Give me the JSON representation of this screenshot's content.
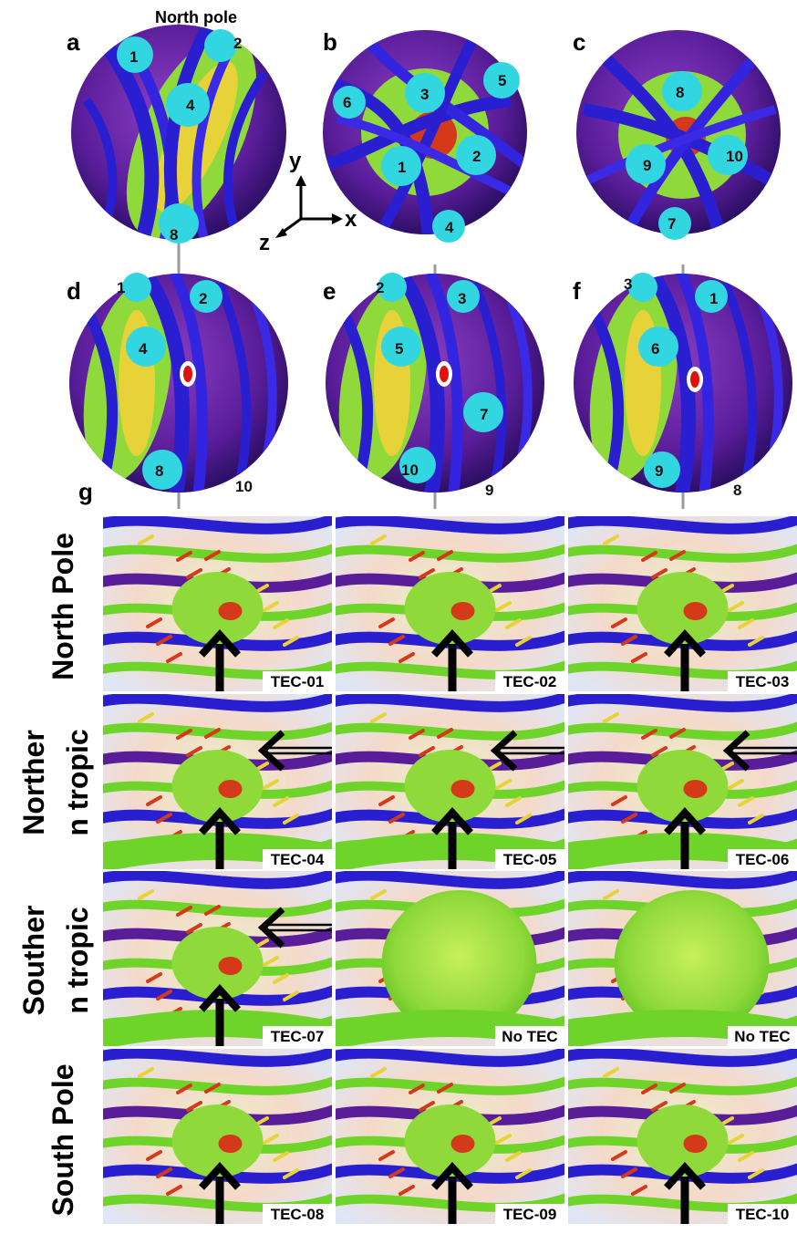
{
  "top_title": "North pole",
  "panels": [
    {
      "letter": "a",
      "numbers": [
        "1",
        "2",
        "4",
        "8"
      ]
    },
    {
      "letter": "b",
      "numbers": [
        "6",
        "3",
        "5",
        "1",
        "2",
        "4"
      ]
    },
    {
      "letter": "c",
      "numbers": [
        "8",
        "9",
        "10",
        "7"
      ]
    },
    {
      "letter": "d",
      "numbers": [
        "1",
        "2",
        "4",
        "8",
        "10"
      ]
    },
    {
      "letter": "e",
      "numbers": [
        "2",
        "3",
        "5",
        "7",
        "10",
        "9"
      ]
    },
    {
      "letter": "f",
      "numbers": [
        "3",
        "1",
        "6",
        "9",
        "8"
      ]
    }
  ],
  "axes": {
    "y": "y",
    "x": "x",
    "z": "z"
  },
  "grid_letter": "g",
  "rows": [
    {
      "label": [
        "North Pole"
      ],
      "cells": [
        "TEC-01",
        "TEC-02",
        "TEC-03"
      ]
    },
    {
      "label": [
        "Norther",
        "n tropic"
      ],
      "cells": [
        "TEC-04",
        "TEC-05",
        "TEC-06"
      ]
    },
    {
      "label": [
        "Souther",
        "n tropic"
      ],
      "cells": [
        "TEC-07",
        "No TEC",
        "No TEC"
      ]
    },
    {
      "label": [
        "South Pole"
      ],
      "cells": [
        "TEC-08",
        "TEC-09",
        "TEC-10"
      ]
    }
  ],
  "colors": {
    "blue": "#2a1fd0",
    "purple": "#7a1fa8",
    "green": "#6fd42a",
    "yellow": "#e8d23a",
    "red": "#d43a1a",
    "cyan": "#32d6e0",
    "arrow": "#000000"
  }
}
